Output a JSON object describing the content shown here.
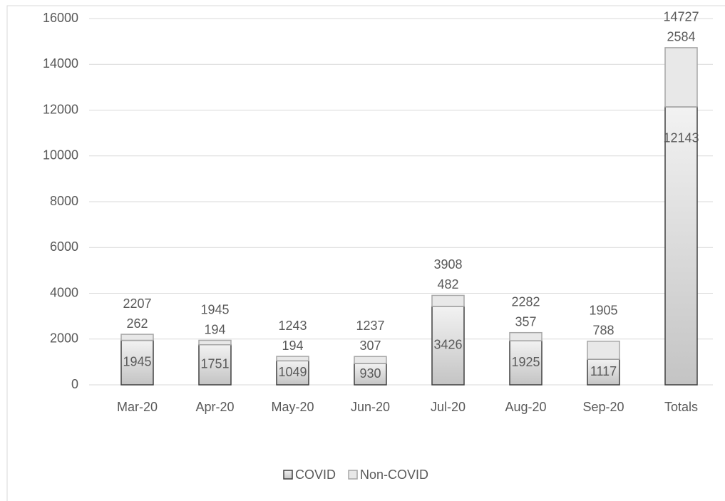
{
  "chart_data": {
    "type": "stacked_bar",
    "categories": [
      "Mar-20",
      "Apr-20",
      "May-20",
      "Jun-20",
      "Jul-20",
      "Aug-20",
      "Sep-20",
      "Totals"
    ],
    "series": [
      {
        "name": "COVID",
        "color": "#d0d0d0",
        "values": [
          1945,
          1751,
          1049,
          930,
          3426,
          1925,
          1117,
          12143
        ]
      },
      {
        "name": "Non-COVID",
        "color": "#e8e8e8",
        "values": [
          262,
          194,
          194,
          307,
          482,
          357,
          788,
          2584
        ]
      }
    ],
    "totals": [
      2207,
      1945,
      1243,
      1237,
      3908,
      2282,
      1905,
      14727
    ],
    "ylim": [
      0,
      16000
    ],
    "yticks": [
      0,
      2000,
      4000,
      6000,
      8000,
      10000,
      12000,
      14000,
      16000
    ],
    "grid": true,
    "legend": "bottom"
  }
}
